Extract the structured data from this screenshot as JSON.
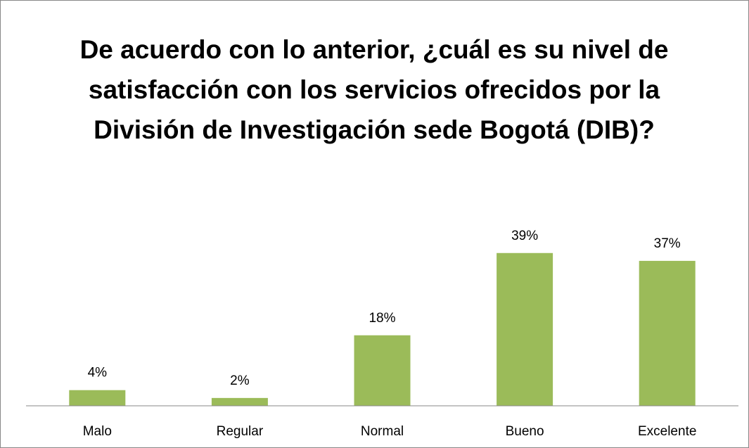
{
  "chart_data": {
    "type": "bar",
    "title": "De acuerdo con lo anterior, ¿cuál es su nivel de satisfacción con los servicios ofrecidos por la División de Investigación sede Bogotá (DIB)?",
    "categories": [
      "Malo",
      "Regular",
      "Normal",
      "Bueno",
      "Excelente"
    ],
    "values": [
      4,
      2,
      18,
      39,
      37
    ],
    "value_labels": [
      "4%",
      "2%",
      "18%",
      "39%",
      "37%"
    ],
    "color": "#9bbb59"
  }
}
